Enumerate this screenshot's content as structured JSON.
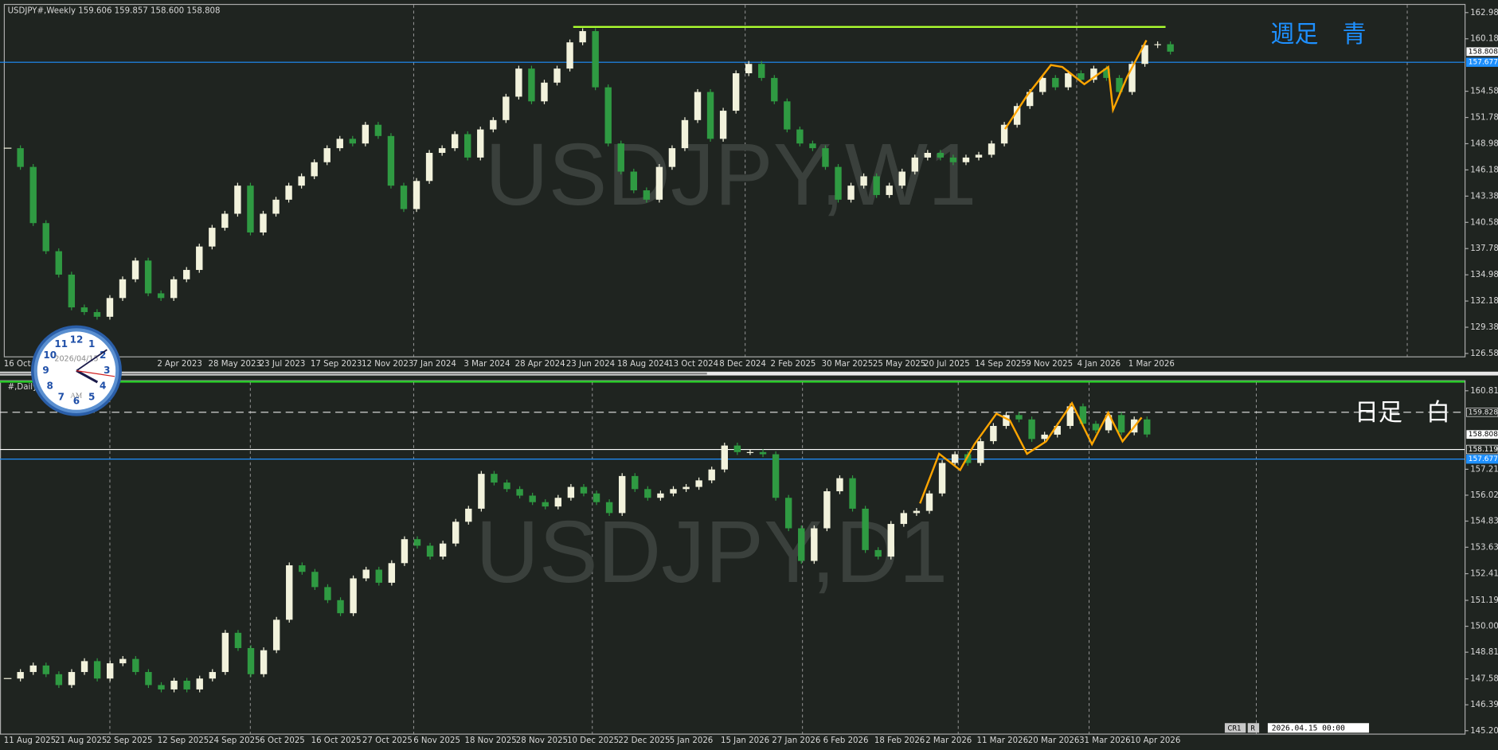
{
  "chart_data": [
    {
      "type": "candlestick",
      "header": "USDJPY#,Weekly  159.606 159.857 158.600 158.808",
      "watermark": "USDJPY,W1",
      "label": "週足　青",
      "label_color": "#1e90ff",
      "categories": [
        "16 Oct",
        null,
        null,
        null,
        null,
        null,
        null,
        null,
        null,
        null,
        null,
        null,
        "2 Apr 2023",
        null,
        null,
        null,
        "28 May 2023",
        null,
        null,
        null,
        "23 Jul 2023",
        null,
        null,
        null,
        "17 Sep 2023",
        null,
        null,
        null,
        "12 Nov 2023",
        null,
        null,
        null,
        "7 Jan 2024",
        null,
        null,
        null,
        "3 Mar 2024",
        null,
        null,
        null,
        "28 Apr 2024",
        null,
        null,
        null,
        "23 Jun 2024",
        null,
        null,
        null,
        "18 Aug 2024",
        null,
        null,
        null,
        "13 Oct 2024",
        null,
        null,
        null,
        "8 Dec 2024",
        null,
        null,
        null,
        "2 Feb 2025",
        null,
        null,
        null,
        "30 Mar 2025",
        null,
        null,
        null,
        "25 May 2025",
        null,
        null,
        null,
        "20 Jul 2025",
        null,
        null,
        null,
        "14 Sep 2025",
        null,
        null,
        null,
        "9 Nov 2025",
        null,
        null,
        null,
        "4 Jan 2026",
        null,
        null,
        null,
        "1 Mar 2026",
        null,
        null,
        null
      ],
      "values": [
        148.5,
        146.5,
        140.5,
        137.5,
        135.0,
        131.5,
        131.0,
        130.5,
        132.5,
        134.5,
        136.5,
        133.0,
        132.5,
        134.5,
        135.5,
        138.0,
        140.0,
        141.5,
        144.5,
        139.5,
        141.5,
        143.0,
        144.5,
        145.5,
        147.0,
        148.5,
        149.5,
        149.0,
        151.0,
        149.8,
        144.5,
        142.0,
        145.0,
        148.0,
        148.5,
        150.0,
        147.5,
        150.5,
        151.5,
        154.0,
        157.0,
        153.5,
        155.5,
        157.0,
        159.8,
        161.0,
        155.0,
        149.0,
        146.0,
        144.0,
        143.0,
        146.5,
        148.5,
        151.5,
        154.5,
        149.5,
        152.5,
        156.5,
        157.5,
        156.0,
        153.5,
        150.5,
        149.0,
        148.5,
        146.5,
        143.0,
        144.5,
        145.5,
        143.5,
        144.5,
        146.0,
        147.5,
        148.0,
        147.5,
        147.0,
        147.5,
        147.8,
        149.0,
        151.0,
        153.0,
        154.5,
        156.0,
        155.0,
        156.5,
        155.8,
        157.0,
        156.0,
        154.5,
        157.5,
        159.5,
        159.6,
        158.808
      ],
      "up_color": "#f2f2dc",
      "down_color": "#2f9a42",
      "ylim": [
        126.27,
        163.8
      ],
      "yticks": [
        {
          "value": 162.98,
          "label": "162.980"
        },
        {
          "value": 160.18,
          "label": "160.180"
        },
        {
          "value": 154.58,
          "label": "154.580"
        },
        {
          "value": 151.78,
          "label": "151.780"
        },
        {
          "value": 148.98,
          "label": "148.980"
        },
        {
          "value": 146.18,
          "label": "146.180"
        },
        {
          "value": 143.38,
          "label": "143.380"
        },
        {
          "value": 140.58,
          "label": "140.580"
        },
        {
          "value": 137.78,
          "label": "137.780"
        },
        {
          "value": 134.98,
          "label": "134.980"
        },
        {
          "value": 132.18,
          "label": "132.180"
        },
        {
          "value": 129.38,
          "label": "129.380"
        },
        {
          "value": 126.58,
          "label": "126.580"
        }
      ],
      "lines": [
        {
          "value": 157.677,
          "color": "#1e90ff",
          "style": "solid",
          "tag": true
        },
        {
          "value": 161.45,
          "color": "#adff2f",
          "style": "segment",
          "tag": false
        }
      ],
      "price_tag": 158.808
    },
    {
      "type": "candlestick",
      "header": "#,Daily",
      "watermark": "USDJPY,D1",
      "label": "日足　白",
      "label_color": "#ffffff",
      "categories": [
        "11 Aug 2025",
        null,
        null,
        null,
        "21 Aug 2025",
        null,
        null,
        null,
        "2 Sep 2025",
        null,
        null,
        null,
        "12 Sep 2025",
        null,
        null,
        null,
        "24 Sep 2025",
        null,
        null,
        null,
        "6 Oct 2025",
        null,
        null,
        null,
        "16 Oct 2025",
        null,
        null,
        null,
        "27 Oct 2025",
        null,
        null,
        null,
        "6 Nov 2025",
        null,
        null,
        null,
        "18 Nov 2025",
        null,
        null,
        null,
        "28 Nov 2025",
        null,
        null,
        null,
        "10 Dec 2025",
        null,
        null,
        null,
        "22 Dec 2025",
        null,
        null,
        null,
        "5 Jan 2026",
        null,
        null,
        null,
        "15 Jan 2026",
        null,
        null,
        null,
        "27 Jan 2026",
        null,
        null,
        null,
        "6 Feb 2026",
        null,
        null,
        null,
        "18 Feb 2026",
        null,
        null,
        null,
        "2 Mar 2026",
        null,
        null,
        null,
        "11 Mar 2026",
        null,
        null,
        null,
        "20 Mar 2026",
        null,
        null,
        null,
        "31 Mar 2026",
        null,
        null,
        null,
        "10 Apr 2026",
        null
      ],
      "values": [
        147.6,
        147.9,
        148.2,
        147.8,
        147.3,
        147.9,
        148.4,
        147.6,
        148.3,
        148.5,
        147.9,
        147.3,
        147.1,
        147.5,
        147.1,
        147.6,
        147.9,
        149.7,
        149.0,
        147.8,
        148.9,
        150.3,
        152.8,
        152.5,
        151.8,
        151.2,
        150.6,
        152.2,
        152.6,
        152.0,
        152.9,
        154.0,
        153.7,
        153.2,
        153.8,
        154.8,
        155.4,
        157.0,
        156.6,
        156.3,
        156.0,
        155.7,
        155.5,
        155.9,
        156.4,
        156.1,
        155.7,
        155.2,
        156.9,
        156.3,
        155.9,
        156.1,
        156.3,
        156.4,
        156.7,
        157.2,
        158.3,
        158.0,
        158.0,
        157.9,
        155.9,
        154.5,
        153.0,
        154.5,
        156.2,
        156.8,
        155.4,
        153.5,
        153.2,
        154.7,
        155.2,
        155.3,
        156.1,
        157.5,
        157.9,
        157.5,
        158.5,
        159.2,
        159.7,
        159.5,
        158.6,
        158.8,
        159.2,
        160.1,
        159.3,
        159.0,
        159.7,
        158.9,
        159.5,
        158.808
      ],
      "up_color": "#f2f2dc",
      "down_color": "#2f9a42",
      "ylim": [
        145.07,
        161.21
      ],
      "yticks": [
        160.815,
        {
          "value": 157.21,
          "label": "157.210"
        },
        {
          "value": 156.02,
          "label": "156.020"
        },
        {
          "value": 154.83,
          "label": "154.830"
        },
        {
          "value": 153.63,
          "label": "153.630"
        },
        152.415,
        {
          "value": 151.19,
          "label": "151.190"
        },
        {
          "value": 150,
          "label": "150.000"
        },
        {
          "value": 148.81,
          "label": "148.810"
        },
        147.585,
        146.395,
        145.205
      ],
      "lines": [
        {
          "value": 159.828,
          "color": "#e8e8e8",
          "style": "dashed",
          "tag": true
        },
        {
          "value": 158.119,
          "color": "#ffffff",
          "style": "solid",
          "tag": true
        },
        {
          "value": 157.677,
          "color": "#1e90ff",
          "style": "solid",
          "tag": true
        }
      ],
      "price_tag": 158.808
    }
  ],
  "clock": {
    "numerals": [
      "12",
      "1",
      "2",
      "3",
      "4",
      "5",
      "6",
      "7",
      "8",
      "9",
      "10",
      "11"
    ],
    "date": "2026/04/15",
    "period": "AM"
  },
  "status": {
    "items": [
      "CR1",
      "R"
    ],
    "time": "2026.04.15 00:00"
  }
}
